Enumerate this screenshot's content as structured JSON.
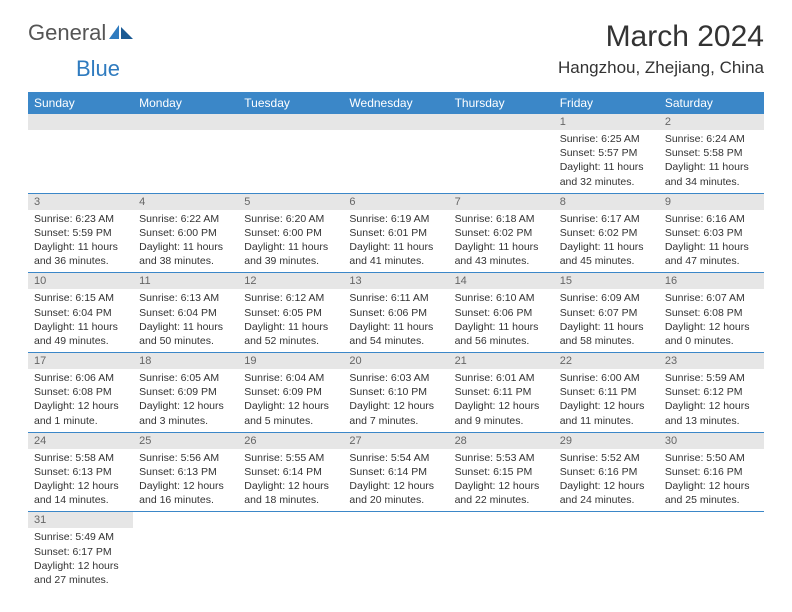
{
  "brand": {
    "general": "General",
    "blue": "Blue"
  },
  "title": "March 2024",
  "location": "Hangzhou, Zhejiang, China",
  "columns": [
    "Sunday",
    "Monday",
    "Tuesday",
    "Wednesday",
    "Thursday",
    "Friday",
    "Saturday"
  ],
  "colors": {
    "header_bg": "#3b87c8",
    "header_text": "#ffffff",
    "daynum_bg": "#e6e6e6",
    "daynum_text": "#666666",
    "border": "#3b87c8",
    "body_text": "#333333",
    "logo_blue": "#2f7bbf"
  },
  "weeks": [
    [
      null,
      null,
      null,
      null,
      null,
      {
        "day": "1",
        "sunrise": "Sunrise: 6:25 AM",
        "sunset": "Sunset: 5:57 PM",
        "daylight": "Daylight: 11 hours and 32 minutes."
      },
      {
        "day": "2",
        "sunrise": "Sunrise: 6:24 AM",
        "sunset": "Sunset: 5:58 PM",
        "daylight": "Daylight: 11 hours and 34 minutes."
      }
    ],
    [
      {
        "day": "3",
        "sunrise": "Sunrise: 6:23 AM",
        "sunset": "Sunset: 5:59 PM",
        "daylight": "Daylight: 11 hours and 36 minutes."
      },
      {
        "day": "4",
        "sunrise": "Sunrise: 6:22 AM",
        "sunset": "Sunset: 6:00 PM",
        "daylight": "Daylight: 11 hours and 38 minutes."
      },
      {
        "day": "5",
        "sunrise": "Sunrise: 6:20 AM",
        "sunset": "Sunset: 6:00 PM",
        "daylight": "Daylight: 11 hours and 39 minutes."
      },
      {
        "day": "6",
        "sunrise": "Sunrise: 6:19 AM",
        "sunset": "Sunset: 6:01 PM",
        "daylight": "Daylight: 11 hours and 41 minutes."
      },
      {
        "day": "7",
        "sunrise": "Sunrise: 6:18 AM",
        "sunset": "Sunset: 6:02 PM",
        "daylight": "Daylight: 11 hours and 43 minutes."
      },
      {
        "day": "8",
        "sunrise": "Sunrise: 6:17 AM",
        "sunset": "Sunset: 6:02 PM",
        "daylight": "Daylight: 11 hours and 45 minutes."
      },
      {
        "day": "9",
        "sunrise": "Sunrise: 6:16 AM",
        "sunset": "Sunset: 6:03 PM",
        "daylight": "Daylight: 11 hours and 47 minutes."
      }
    ],
    [
      {
        "day": "10",
        "sunrise": "Sunrise: 6:15 AM",
        "sunset": "Sunset: 6:04 PM",
        "daylight": "Daylight: 11 hours and 49 minutes."
      },
      {
        "day": "11",
        "sunrise": "Sunrise: 6:13 AM",
        "sunset": "Sunset: 6:04 PM",
        "daylight": "Daylight: 11 hours and 50 minutes."
      },
      {
        "day": "12",
        "sunrise": "Sunrise: 6:12 AM",
        "sunset": "Sunset: 6:05 PM",
        "daylight": "Daylight: 11 hours and 52 minutes."
      },
      {
        "day": "13",
        "sunrise": "Sunrise: 6:11 AM",
        "sunset": "Sunset: 6:06 PM",
        "daylight": "Daylight: 11 hours and 54 minutes."
      },
      {
        "day": "14",
        "sunrise": "Sunrise: 6:10 AM",
        "sunset": "Sunset: 6:06 PM",
        "daylight": "Daylight: 11 hours and 56 minutes."
      },
      {
        "day": "15",
        "sunrise": "Sunrise: 6:09 AM",
        "sunset": "Sunset: 6:07 PM",
        "daylight": "Daylight: 11 hours and 58 minutes."
      },
      {
        "day": "16",
        "sunrise": "Sunrise: 6:07 AM",
        "sunset": "Sunset: 6:08 PM",
        "daylight": "Daylight: 12 hours and 0 minutes."
      }
    ],
    [
      {
        "day": "17",
        "sunrise": "Sunrise: 6:06 AM",
        "sunset": "Sunset: 6:08 PM",
        "daylight": "Daylight: 12 hours and 1 minute."
      },
      {
        "day": "18",
        "sunrise": "Sunrise: 6:05 AM",
        "sunset": "Sunset: 6:09 PM",
        "daylight": "Daylight: 12 hours and 3 minutes."
      },
      {
        "day": "19",
        "sunrise": "Sunrise: 6:04 AM",
        "sunset": "Sunset: 6:09 PM",
        "daylight": "Daylight: 12 hours and 5 minutes."
      },
      {
        "day": "20",
        "sunrise": "Sunrise: 6:03 AM",
        "sunset": "Sunset: 6:10 PM",
        "daylight": "Daylight: 12 hours and 7 minutes."
      },
      {
        "day": "21",
        "sunrise": "Sunrise: 6:01 AM",
        "sunset": "Sunset: 6:11 PM",
        "daylight": "Daylight: 12 hours and 9 minutes."
      },
      {
        "day": "22",
        "sunrise": "Sunrise: 6:00 AM",
        "sunset": "Sunset: 6:11 PM",
        "daylight": "Daylight: 12 hours and 11 minutes."
      },
      {
        "day": "23",
        "sunrise": "Sunrise: 5:59 AM",
        "sunset": "Sunset: 6:12 PM",
        "daylight": "Daylight: 12 hours and 13 minutes."
      }
    ],
    [
      {
        "day": "24",
        "sunrise": "Sunrise: 5:58 AM",
        "sunset": "Sunset: 6:13 PM",
        "daylight": "Daylight: 12 hours and 14 minutes."
      },
      {
        "day": "25",
        "sunrise": "Sunrise: 5:56 AM",
        "sunset": "Sunset: 6:13 PM",
        "daylight": "Daylight: 12 hours and 16 minutes."
      },
      {
        "day": "26",
        "sunrise": "Sunrise: 5:55 AM",
        "sunset": "Sunset: 6:14 PM",
        "daylight": "Daylight: 12 hours and 18 minutes."
      },
      {
        "day": "27",
        "sunrise": "Sunrise: 5:54 AM",
        "sunset": "Sunset: 6:14 PM",
        "daylight": "Daylight: 12 hours and 20 minutes."
      },
      {
        "day": "28",
        "sunrise": "Sunrise: 5:53 AM",
        "sunset": "Sunset: 6:15 PM",
        "daylight": "Daylight: 12 hours and 22 minutes."
      },
      {
        "day": "29",
        "sunrise": "Sunrise: 5:52 AM",
        "sunset": "Sunset: 6:16 PM",
        "daylight": "Daylight: 12 hours and 24 minutes."
      },
      {
        "day": "30",
        "sunrise": "Sunrise: 5:50 AM",
        "sunset": "Sunset: 6:16 PM",
        "daylight": "Daylight: 12 hours and 25 minutes."
      }
    ],
    [
      {
        "day": "31",
        "sunrise": "Sunrise: 5:49 AM",
        "sunset": "Sunset: 6:17 PM",
        "daylight": "Daylight: 12 hours and 27 minutes."
      },
      null,
      null,
      null,
      null,
      null,
      null
    ]
  ]
}
